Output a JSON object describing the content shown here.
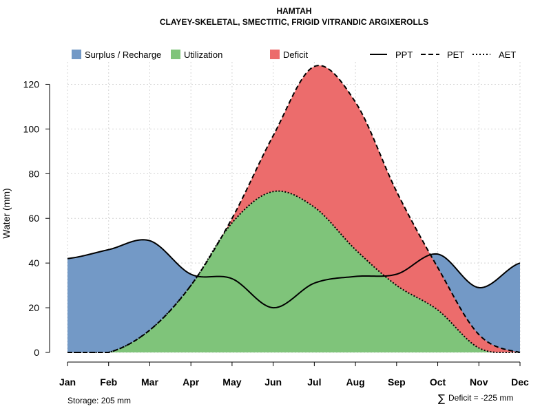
{
  "chart_data": {
    "type": "area",
    "title": "HAMTAH",
    "subtitle": "CLAYEY-SKELETAL, SMECTITIC, FRIGID VITRANDIC ARGIXEROLLS",
    "ylabel": "Water (mm)",
    "xlabel": "",
    "ylim": [
      0,
      130
    ],
    "yticks": [
      0,
      20,
      40,
      60,
      80,
      100,
      120
    ],
    "grid": true,
    "categories": [
      "Jan",
      "Feb",
      "Mar",
      "Apr",
      "May",
      "Jun",
      "Jul",
      "Aug",
      "Sep",
      "Oct",
      "Nov",
      "Dec"
    ],
    "series": [
      {
        "name": "PPT",
        "values": [
          42,
          46,
          50,
          35,
          33,
          20,
          31,
          34,
          35,
          44,
          29,
          40
        ]
      },
      {
        "name": "PET",
        "values": [
          0,
          0,
          10,
          30,
          60,
          97,
          128,
          112,
          72,
          38,
          8,
          0
        ]
      },
      {
        "name": "AET",
        "values": [
          0,
          0,
          10,
          30,
          58,
          72,
          65,
          46,
          30,
          19,
          2,
          0
        ]
      }
    ],
    "legend": {
      "position": "top",
      "areas": [
        {
          "label": "Surplus / Recharge",
          "color": "#7399c6"
        },
        {
          "label": "Utilization",
          "color": "#7fc47a"
        },
        {
          "label": "Deficit",
          "color": "#ec6c6c"
        }
      ],
      "lines": [
        {
          "label": "PPT",
          "style": "solid"
        },
        {
          "label": "PET",
          "style": "dashed"
        },
        {
          "label": "AET",
          "style": "dotted"
        }
      ]
    },
    "annotations": {
      "storage": "Storage: 205 mm",
      "deficit_symbol": "∑",
      "deficit": "Deficit = -225 mm"
    }
  }
}
